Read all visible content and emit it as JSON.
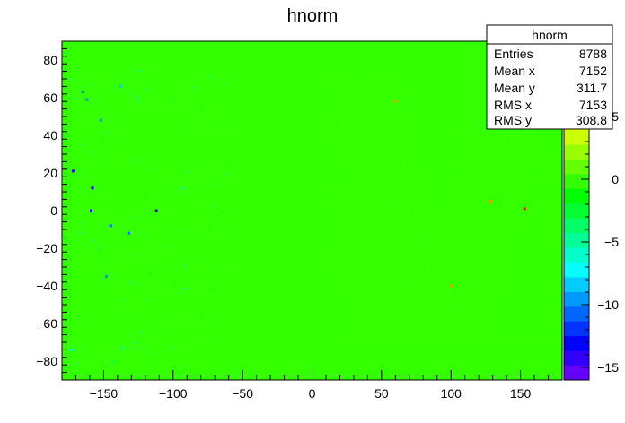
{
  "chart_data": {
    "type": "heatmap",
    "title": "hnorm",
    "xlabel": "",
    "ylabel": "",
    "xlim": [
      -180,
      180
    ],
    "ylim": [
      -90,
      90
    ],
    "x_ticks": [
      -150,
      -100,
      -50,
      0,
      50,
      100,
      150
    ],
    "y_ticks": [
      -80,
      -60,
      -40,
      -20,
      0,
      20,
      40,
      60,
      80
    ],
    "z_range": [
      -16,
      11
    ],
    "z_ticks": [
      5,
      0,
      -5,
      -10,
      -15
    ],
    "background_value": 0,
    "grid": false,
    "palette": [
      "#6600ff",
      "#3300ff",
      "#0000ff",
      "#0033ff",
      "#0066ff",
      "#0099ff",
      "#00ccff",
      "#00ffff",
      "#00ffcc",
      "#00ff99",
      "#00ff66",
      "#00ff33",
      "#00ff00",
      "#33ff00",
      "#66ff00",
      "#99ff00",
      "#ccff00",
      "#ffff00",
      "#ffcc00",
      "#ff9900",
      "#ff6600",
      "#ff3300",
      "#ff0000"
    ],
    "stats_box": {
      "title": "hnorm",
      "rows": [
        {
          "label": "Entries",
          "value": "8788"
        },
        {
          "label": "Mean x",
          "value": "7152"
        },
        {
          "label": "Mean y",
          "value": "311.7"
        },
        {
          "label": "RMS x",
          "value": "7153"
        },
        {
          "label": "RMS y",
          "value": "308.8"
        }
      ]
    },
    "highlight_points": [
      {
        "x": -159,
        "y": 0,
        "z": -14
      },
      {
        "x": -112,
        "y": 0,
        "z": -14
      },
      {
        "x": -172,
        "y": 21,
        "z": -14
      },
      {
        "x": -158,
        "y": 12,
        "z": -13
      },
      {
        "x": -152,
        "y": 48,
        "z": -10
      },
      {
        "x": -162,
        "y": 59,
        "z": -10
      },
      {
        "x": -165,
        "y": 63,
        "z": -9
      },
      {
        "x": -145,
        "y": -8,
        "z": -11
      },
      {
        "x": -132,
        "y": -12,
        "z": -11
      },
      {
        "x": -148,
        "y": -35,
        "z": -9
      },
      {
        "x": -138,
        "y": 66,
        "z": -8
      },
      {
        "x": -173,
        "y": -74,
        "z": -7
      },
      {
        "x": 153,
        "y": 1,
        "z": 11
      },
      {
        "x": 128,
        "y": 5,
        "z": 7
      },
      {
        "x": 100,
        "y": -40,
        "z": 7
      },
      {
        "x": 60,
        "y": 58,
        "z": 7
      }
    ]
  }
}
